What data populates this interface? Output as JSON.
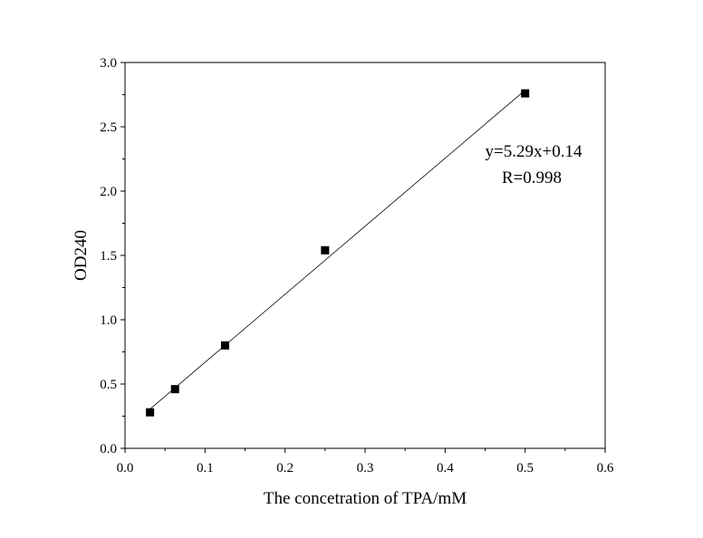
{
  "chart_data": {
    "type": "scatter",
    "title": "",
    "xlabel": "The concetration of TPA/mM",
    "ylabel": "OD240",
    "xlim": [
      0.0,
      0.6
    ],
    "ylim": [
      0.0,
      3.0
    ],
    "x_ticks": [
      0.0,
      0.1,
      0.2,
      0.3,
      0.4,
      0.5,
      0.6
    ],
    "y_ticks": [
      0.0,
      0.5,
      1.0,
      1.5,
      2.0,
      2.5,
      3.0
    ],
    "x_tick_labels": [
      "0.0",
      "0.1",
      "0.2",
      "0.3",
      "0.4",
      "0.5",
      "0.6"
    ],
    "y_tick_labels": [
      "0.0",
      "0.5",
      "1.0",
      "1.5",
      "2.0",
      "2.5",
      "3.0"
    ],
    "grid": false,
    "legend": "none",
    "series": [
      {
        "points": [
          {
            "x": 0.03125,
            "y": 0.28
          },
          {
            "x": 0.0625,
            "y": 0.46
          },
          {
            "x": 0.125,
            "y": 0.8
          },
          {
            "x": 0.25,
            "y": 1.54
          },
          {
            "x": 0.5,
            "y": 2.76
          }
        ],
        "marker_color": "#000000"
      }
    ],
    "fit_line": {
      "slope": 5.29,
      "intercept": 0.14,
      "x_range": [
        0.03125,
        0.5
      ],
      "color": "#000000"
    },
    "annotations": [
      "y=5.29x+0.14",
      "R=0.998"
    ]
  }
}
